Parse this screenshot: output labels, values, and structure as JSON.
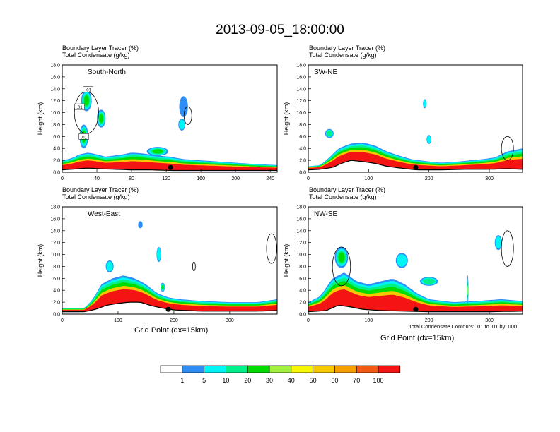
{
  "title": "2013-09-05_18:00:00",
  "panel_title_line1": "Boundary Layer Tracer   (%)",
  "panel_title_line2": "Total Condensate   (g/kg)",
  "y_axis_label": "Height (km)",
  "x_axis_label": "Grid Point (dx=15km)",
  "contour_note": "Total Condensate Contours: .01 to .01 by .000",
  "contour_label": ".01",
  "colors": {
    "levels": [
      "#ffffff",
      "#2e8ef5",
      "#00f5f5",
      "#00f08c",
      "#00dc00",
      "#a0f03c",
      "#f5f500",
      "#f5c800",
      "#f5a000",
      "#f55a14",
      "#f51414"
    ]
  },
  "colorbar": {
    "labels": [
      "1",
      "5",
      "10",
      "20",
      "30",
      "40",
      "50",
      "60",
      "70",
      "100"
    ]
  },
  "chart_data": [
    {
      "type": "heatmap",
      "name": "South-North",
      "xlim": [
        0,
        248
      ],
      "ylim": [
        0,
        18
      ],
      "xticks": [
        "0",
        "40",
        "80",
        "120",
        "160",
        "200",
        "240"
      ],
      "yticks": [
        "0.0",
        "2.0",
        "4.0",
        "6.0",
        "8.0",
        "10.0",
        "12.0",
        "14.0",
        "16.0",
        "18.0"
      ],
      "marker_x": 125,
      "terrain": [
        [
          0,
          0.4
        ],
        [
          10,
          0.5
        ],
        [
          20,
          0.6
        ],
        [
          30,
          0.7
        ],
        [
          40,
          0.6
        ],
        [
          60,
          0.5
        ],
        [
          80,
          0.4
        ],
        [
          100,
          0.4
        ],
        [
          125,
          0.3
        ],
        [
          160,
          0.3
        ],
        [
          200,
          0.3
        ],
        [
          248,
          0.3
        ]
      ],
      "pbl_top": [
        [
          0,
          2.0
        ],
        [
          10,
          2.3
        ],
        [
          20,
          3.0
        ],
        [
          30,
          3.3
        ],
        [
          40,
          3.0
        ],
        [
          50,
          2.6
        ],
        [
          60,
          2.8
        ],
        [
          70,
          3.0
        ],
        [
          80,
          3.3
        ],
        [
          90,
          3.2
        ],
        [
          100,
          3.0
        ],
        [
          110,
          2.8
        ],
        [
          125,
          2.6
        ],
        [
          140,
          2.2
        ],
        [
          160,
          2.0
        ],
        [
          180,
          1.8
        ],
        [
          200,
          1.6
        ],
        [
          220,
          1.4
        ],
        [
          248,
          1.2
        ]
      ],
      "blobs": [
        {
          "x": 28,
          "y": 12.0,
          "w": 12,
          "h": 3.5,
          "level": 4
        },
        {
          "x": 25,
          "y": 6.0,
          "w": 10,
          "h": 4.0,
          "level": 4
        },
        {
          "x": 45,
          "y": 9.0,
          "w": 10,
          "h": 3.0,
          "level": 4
        },
        {
          "x": 140,
          "y": 11.0,
          "w": 10,
          "h": 3.5,
          "level": 1
        },
        {
          "x": 138,
          "y": 8.0,
          "w": 8,
          "h": 2.0,
          "level": 2
        },
        {
          "x": 110,
          "y": 3.5,
          "w": 25,
          "h": 1.5,
          "level": 4
        }
      ],
      "contours": [
        {
          "x": 28,
          "y": 10.0,
          "w": 28,
          "h": 7.0
        },
        {
          "x": 145,
          "y": 9.5,
          "w": 9,
          "h": 3.0
        }
      ]
    },
    {
      "type": "heatmap",
      "name": "SW-NE",
      "xlim": [
        0,
        355
      ],
      "ylim": [
        0,
        18
      ],
      "xticks": [
        "0",
        "100",
        "200",
        "300"
      ],
      "yticks": [
        "0.0",
        "2.0",
        "4.0",
        "6.0",
        "8.0",
        "10.0",
        "12.0",
        "14.0",
        "16.0",
        "18.0"
      ],
      "marker_x": 178,
      "terrain": [
        [
          0,
          0.4
        ],
        [
          20,
          0.5
        ],
        [
          40,
          0.8
        ],
        [
          55,
          1.5
        ],
        [
          70,
          2.0
        ],
        [
          90,
          1.8
        ],
        [
          110,
          1.5
        ],
        [
          130,
          1.0
        ],
        [
          160,
          0.6
        ],
        [
          180,
          0.4
        ],
        [
          220,
          0.4
        ],
        [
          260,
          0.5
        ],
        [
          300,
          0.5
        ],
        [
          330,
          0.6
        ],
        [
          355,
          0.5
        ]
      ],
      "pbl_top": [
        [
          0,
          1.0
        ],
        [
          20,
          1.2
        ],
        [
          35,
          2.5
        ],
        [
          50,
          4.0
        ],
        [
          70,
          4.8
        ],
        [
          90,
          5.0
        ],
        [
          110,
          4.5
        ],
        [
          130,
          3.5
        ],
        [
          150,
          2.8
        ],
        [
          170,
          2.2
        ],
        [
          200,
          1.8
        ],
        [
          220,
          1.6
        ],
        [
          250,
          1.8
        ],
        [
          270,
          2.0
        ],
        [
          290,
          2.2
        ],
        [
          310,
          2.5
        ],
        [
          330,
          3.5
        ],
        [
          355,
          4.0
        ]
      ],
      "blobs": [
        {
          "x": 35,
          "y": 6.5,
          "w": 14,
          "h": 1.5,
          "level": 3
        },
        {
          "x": 200,
          "y": 5.5,
          "w": 8,
          "h": 1.5,
          "level": 2
        },
        {
          "x": 193,
          "y": 11.5,
          "w": 6,
          "h": 1.5,
          "level": 2
        }
      ],
      "contours": [
        {
          "x": 330,
          "y": 4.0,
          "w": 20,
          "h": 4.0
        }
      ]
    },
    {
      "type": "heatmap",
      "name": "West-East",
      "xlim": [
        0,
        385
      ],
      "ylim": [
        0,
        18
      ],
      "xticks": [
        "0",
        "100",
        "200",
        "300"
      ],
      "yticks": [
        "0.0",
        "2.0",
        "4.0",
        "6.0",
        "8.0",
        "10.0",
        "12.0",
        "14.0",
        "16.0",
        "18.0"
      ],
      "marker_x": 190,
      "terrain": [
        [
          0,
          0.4
        ],
        [
          40,
          0.4
        ],
        [
          60,
          0.8
        ],
        [
          80,
          1.5
        ],
        [
          100,
          1.8
        ],
        [
          120,
          2.0
        ],
        [
          140,
          2.0
        ],
        [
          160,
          1.4
        ],
        [
          180,
          1.0
        ],
        [
          200,
          0.7
        ],
        [
          250,
          0.5
        ],
        [
          300,
          0.5
        ],
        [
          350,
          0.5
        ],
        [
          385,
          0.6
        ]
      ],
      "pbl_top": [
        [
          0,
          1.0
        ],
        [
          40,
          1.0
        ],
        [
          55,
          2.5
        ],
        [
          70,
          5.0
        ],
        [
          90,
          6.0
        ],
        [
          110,
          6.5
        ],
        [
          130,
          6.0
        ],
        [
          150,
          5.0
        ],
        [
          170,
          3.5
        ],
        [
          190,
          2.8
        ],
        [
          210,
          2.5
        ],
        [
          250,
          2.2
        ],
        [
          300,
          2.0
        ],
        [
          350,
          2.0
        ],
        [
          385,
          2.5
        ]
      ],
      "blobs": [
        {
          "x": 85,
          "y": 8.0,
          "w": 14,
          "h": 2.0,
          "level": 2
        },
        {
          "x": 173,
          "y": 10.0,
          "w": 8,
          "h": 2.5,
          "level": 2
        },
        {
          "x": 140,
          "y": 15.0,
          "w": 8,
          "h": 1.2,
          "level": 1
        },
        {
          "x": 180,
          "y": 4.5,
          "w": 8,
          "h": 1.5,
          "level": 4
        }
      ],
      "contours": [
        {
          "x": 375,
          "y": 11.0,
          "w": 18,
          "h": 5.0
        },
        {
          "x": 236,
          "y": 8.0,
          "w": 5,
          "h": 1.5
        }
      ]
    },
    {
      "type": "heatmap",
      "name": "NW-SE",
      "xlim": [
        0,
        355
      ],
      "ylim": [
        0,
        18
      ],
      "xticks": [
        "0",
        "100",
        "200",
        "300"
      ],
      "yticks": [
        "0.0",
        "2.0",
        "4.0",
        "6.0",
        "8.0",
        "10.0",
        "12.0",
        "14.0",
        "16.0",
        "18.0"
      ],
      "marker_x": 178,
      "terrain": [
        [
          0,
          0.4
        ],
        [
          30,
          0.6
        ],
        [
          50,
          1.5
        ],
        [
          70,
          1.2
        ],
        [
          90,
          0.8
        ],
        [
          120,
          0.6
        ],
        [
          160,
          0.5
        ],
        [
          200,
          0.4
        ],
        [
          260,
          0.4
        ],
        [
          300,
          0.4
        ],
        [
          355,
          0.5
        ]
      ],
      "pbl_top": [
        [
          0,
          2.0
        ],
        [
          20,
          3.0
        ],
        [
          40,
          6.0
        ],
        [
          60,
          7.0
        ],
        [
          80,
          5.5
        ],
        [
          100,
          5.0
        ],
        [
          120,
          5.5
        ],
        [
          140,
          6.0
        ],
        [
          160,
          5.0
        ],
        [
          180,
          3.5
        ],
        [
          200,
          2.5
        ],
        [
          240,
          2.0
        ],
        [
          280,
          2.2
        ],
        [
          320,
          2.5
        ],
        [
          355,
          2.2
        ]
      ],
      "blobs": [
        {
          "x": 55,
          "y": 9.5,
          "w": 22,
          "h": 3.5,
          "level": 4
        },
        {
          "x": 155,
          "y": 9.0,
          "w": 20,
          "h": 2.5,
          "level": 2
        },
        {
          "x": 315,
          "y": 12.0,
          "w": 12,
          "h": 2.5,
          "level": 2
        },
        {
          "x": 264,
          "y": 4.0,
          "w": 3,
          "h": 5.0,
          "level": 5
        },
        {
          "x": 200,
          "y": 5.5,
          "w": 30,
          "h": 1.5,
          "level": 3
        }
      ],
      "contours": [
        {
          "x": 55,
          "y": 8.0,
          "w": 30,
          "h": 6.5
        },
        {
          "x": 330,
          "y": 11.0,
          "w": 20,
          "h": 6.0
        }
      ]
    }
  ]
}
